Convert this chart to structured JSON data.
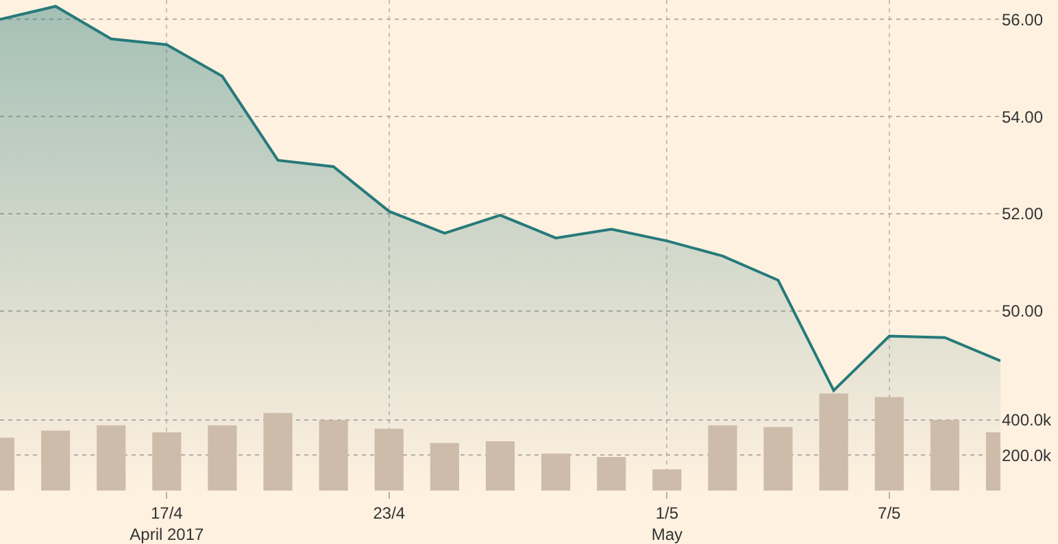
{
  "chart_data": {
    "type": "area",
    "categories": [
      null,
      null,
      null,
      "17/4\nApril 2017",
      null,
      null,
      null,
      "23/4",
      null,
      null,
      null,
      null,
      "1/5\nMay",
      null,
      null,
      null,
      "7/5",
      null,
      null
    ],
    "series": [
      {
        "color": "#267a7a",
        "values": [
          56.0,
          56.27,
          55.6,
          55.48,
          54.83,
          53.1,
          52.97,
          52.05,
          51.6,
          51.97,
          51.5,
          51.68,
          51.44,
          51.13,
          50.63,
          48.36,
          49.48,
          49.45,
          48.97
        ]
      },
      {
        "type": "bar",
        "axis": "y2",
        "color": "#cebcaa",
        "values": [
          300000,
          340000,
          370000,
          330000,
          370000,
          440000,
          400000,
          350000,
          270000,
          280000,
          210000,
          190000,
          120000,
          370000,
          360000,
          550000,
          530000,
          400000,
          330000
        ]
      }
    ],
    "ylim": [
      46.3,
      56.4
    ],
    "yticks": [
      {
        "value": 50,
        "label": "50.00"
      },
      {
        "value": 52,
        "label": "52.00"
      },
      {
        "value": 54,
        "label": "54.00"
      },
      {
        "value": 56,
        "label": "56.00"
      }
    ],
    "y2lim": [
      0,
      2780000
    ],
    "y2ticks": [
      {
        "value": 200000,
        "label": "200.0k"
      },
      {
        "value": 400000,
        "label": "400.0k"
      }
    ],
    "grid": true
  }
}
